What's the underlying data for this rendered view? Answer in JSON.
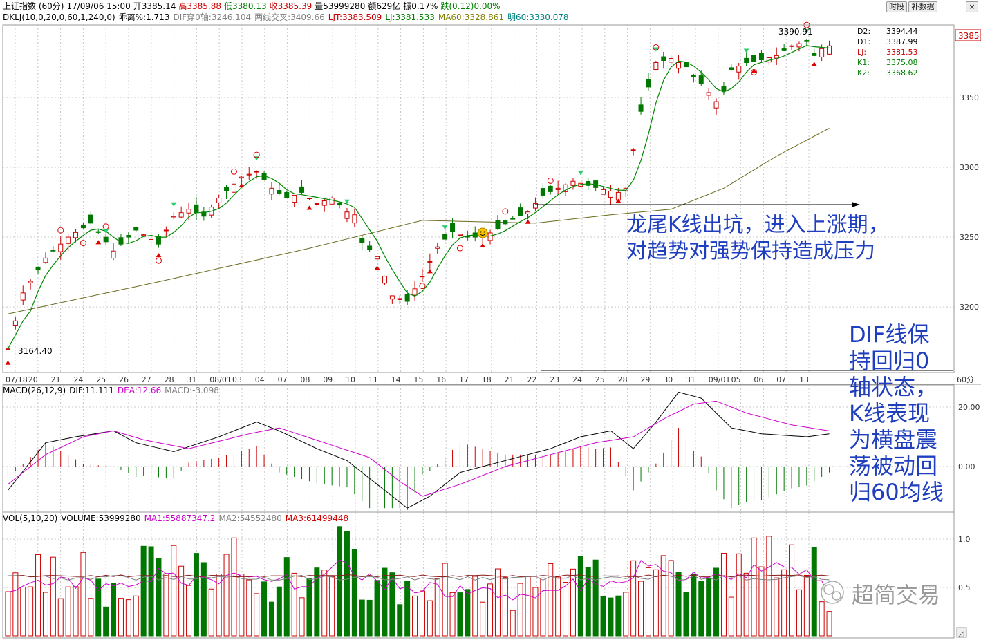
{
  "header": {
    "row1": [
      {
        "text": "上证指数 (60分)",
        "color": "#000000"
      },
      {
        "text": "17/09/06 15:00",
        "color": "#000000"
      },
      {
        "text": "开3385.14",
        "color": "#000000"
      },
      {
        "text": "高3385.88",
        "color": "#cc0000"
      },
      {
        "text": "低3380.13",
        "color": "#008000"
      },
      {
        "text": "收3385.39",
        "color": "#cc0000"
      },
      {
        "text": "量53999280",
        "color": "#000000"
      },
      {
        "text": "额629亿",
        "color": "#000000"
      },
      {
        "text": "振0.17%",
        "color": "#000000"
      },
      {
        "text": "跌(0.12)0.00%",
        "color": "#008000"
      }
    ],
    "row2": [
      {
        "text": "DKLJ(10,0,20,0,60,1,240,0)",
        "color": "#000000"
      },
      {
        "text": "乖离%:1.713",
        "color": "#000000"
      },
      {
        "text": "DIF穿0轴:3246.104",
        "color": "#808080"
      },
      {
        "text": "两线交叉:3409.66",
        "color": "#808080"
      },
      {
        "text": "LJT:3383.509",
        "color": "#cc0000"
      },
      {
        "text": "LJ:3381.533",
        "color": "#008000"
      },
      {
        "text": "MA60:3328.861",
        "color": "#808000"
      },
      {
        "text": "明60:3330.078",
        "color": "#008080"
      }
    ]
  },
  "toolbar": {
    "btn1": "时段",
    "btn2": "补数据",
    "close": "×"
  },
  "icons": [
    "close-icon",
    "up-arrow-icon",
    "down-arrow-icon",
    "smiley-icon",
    "wechat-logo-icon",
    "scroll-icon"
  ],
  "watermark": "超简交易",
  "annotation": {
    "line1": "龙尾K线出坑，进入上涨期，",
    "line2": "对趋势对强势保持造成压力",
    "dif_text": [
      "DIF线保",
      "持回归0",
      "轴状态，",
      "K线表现",
      "为横盘震",
      "荡被动回",
      "归60均线"
    ]
  },
  "price_labels": {
    "low": "3164.40",
    "high": "3390.91",
    "current": "3385"
  },
  "right_legend": [
    {
      "name": "D2:",
      "value": "3394.44",
      "color": "#000000"
    },
    {
      "name": "D1:",
      "value": "3387.99",
      "color": "#000000"
    },
    {
      "name": "LJ:",
      "value": "3381.53",
      "color": "#cc0000"
    },
    {
      "name": "K1:",
      "value": "3375.08",
      "color": "#008000"
    },
    {
      "name": "K2:",
      "value": "3368.62",
      "color": "#008000"
    }
  ],
  "macd_header": [
    {
      "text": "MACD(26,12,9)",
      "color": "#000000"
    },
    {
      "text": "DIF:11.111",
      "color": "#000000"
    },
    {
      "text": "DEA:12.66",
      "color": "#cc00cc"
    },
    {
      "text": "MACD:-3.098",
      "color": "#808080"
    }
  ],
  "vol_header": [
    {
      "text": "VOL(5,10,20)",
      "color": "#000000"
    },
    {
      "text": "VOLUME:53999280",
      "color": "#000000"
    },
    {
      "text": "MA1:55887347.2",
      "color": "#cc00cc"
    },
    {
      "text": "MA2:54552480",
      "color": "#808080"
    },
    {
      "text": "MA3:61499448",
      "color": "#cc0000"
    }
  ],
  "colors": {
    "up": "#cc0000",
    "down": "#007700",
    "ma": "#008800",
    "ma60": "#6b6b1e",
    "dif": "#000000",
    "dea": "#cc00cc",
    "grid": "#c8c8c8",
    "border": "#999999"
  },
  "chart_data": {
    "type": "candlestick",
    "period": "60分",
    "x_dates": [
      "07/18",
      "20",
      "21",
      "24",
      "25",
      "26",
      "27",
      "28",
      "31",
      "08/01",
      "03",
      "04",
      "07",
      "08",
      "09",
      "10",
      "11",
      "14",
      "15",
      "16",
      "17",
      "18",
      "21",
      "22",
      "23",
      "24",
      "25",
      "28",
      "29",
      "30",
      "31",
      "09/01",
      "05",
      "06",
      "07",
      "13"
    ],
    "price_axis": {
      "ticks": [
        3200,
        3250,
        3300,
        3350,
        3385
      ],
      "range": [
        3155,
        3400
      ]
    },
    "price_anchors": [
      [
        0,
        3170
      ],
      [
        2,
        3210
      ],
      [
        5,
        3235
      ],
      [
        8,
        3250
      ],
      [
        11,
        3260
      ],
      [
        14,
        3240
      ],
      [
        17,
        3255
      ],
      [
        20,
        3245
      ],
      [
        22,
        3265
      ],
      [
        24,
        3270
      ],
      [
        26,
        3265
      ],
      [
        28,
        3278
      ],
      [
        31,
        3293
      ],
      [
        33,
        3297
      ],
      [
        35,
        3285
      ],
      [
        37,
        3278
      ],
      [
        39,
        3282
      ],
      [
        41,
        3274
      ],
      [
        43,
        3278
      ],
      [
        45,
        3268
      ],
      [
        46,
        3266
      ],
      [
        47,
        3246
      ],
      [
        49,
        3236
      ],
      [
        51,
        3208
      ],
      [
        53,
        3204
      ],
      [
        55,
        3222
      ],
      [
        57,
        3243
      ],
      [
        59,
        3254
      ],
      [
        61,
        3250
      ],
      [
        63,
        3250
      ],
      [
        65,
        3256
      ],
      [
        67,
        3263
      ],
      [
        69,
        3268
      ],
      [
        71,
        3280
      ],
      [
        73,
        3285
      ],
      [
        75,
        3290
      ],
      [
        77,
        3287
      ],
      [
        79,
        3284
      ],
      [
        81,
        3282
      ],
      [
        82,
        3285
      ],
      [
        84,
        3340
      ],
      [
        86,
        3375
      ],
      [
        88,
        3378
      ],
      [
        90,
        3372
      ],
      [
        91,
        3365
      ],
      [
        92,
        3360
      ],
      [
        94,
        3347
      ],
      [
        95,
        3355
      ],
      [
        96,
        3370
      ],
      [
        98,
        3375
      ],
      [
        100,
        3377
      ],
      [
        102,
        3380
      ],
      [
        104,
        3387
      ],
      [
        106,
        3390
      ],
      [
        107,
        3380
      ],
      [
        108,
        3385
      ],
      [
        109,
        3387
      ]
    ],
    "ma60_anchors": [
      [
        0,
        3195
      ],
      [
        20,
        3218
      ],
      [
        40,
        3242
      ],
      [
        55,
        3262
      ],
      [
        70,
        3260
      ],
      [
        80,
        3266
      ],
      [
        88,
        3270
      ],
      [
        95,
        3285
      ],
      [
        102,
        3308
      ],
      [
        109,
        3328
      ]
    ],
    "macd_axis": {
      "ticks": [
        0,
        20
      ]
    },
    "dif_anchors": [
      [
        0,
        -8
      ],
      [
        5,
        8
      ],
      [
        9,
        10
      ],
      [
        14,
        12
      ],
      [
        17,
        8
      ],
      [
        22,
        5
      ],
      [
        28,
        10
      ],
      [
        33,
        15
      ],
      [
        36,
        12
      ],
      [
        41,
        6
      ],
      [
        45,
        2
      ],
      [
        49,
        -6
      ],
      [
        53,
        -14
      ],
      [
        56,
        -10
      ],
      [
        60,
        -2
      ],
      [
        66,
        2
      ],
      [
        72,
        6
      ],
      [
        76,
        10
      ],
      [
        80,
        12
      ],
      [
        83,
        6
      ],
      [
        86,
        15
      ],
      [
        89,
        25
      ],
      [
        92,
        23
      ],
      [
        94,
        18
      ],
      [
        96,
        13
      ],
      [
        100,
        11
      ],
      [
        106,
        10
      ],
      [
        109,
        11
      ]
    ],
    "dea_anchors": [
      [
        0,
        -6
      ],
      [
        5,
        4
      ],
      [
        10,
        10
      ],
      [
        14,
        12
      ],
      [
        18,
        9
      ],
      [
        24,
        6
      ],
      [
        32,
        11
      ],
      [
        36,
        13
      ],
      [
        42,
        8
      ],
      [
        48,
        3
      ],
      [
        52,
        -5
      ],
      [
        55,
        -10
      ],
      [
        60,
        -6
      ],
      [
        66,
        0
      ],
      [
        72,
        4
      ],
      [
        78,
        8
      ],
      [
        83,
        10
      ],
      [
        87,
        16
      ],
      [
        91,
        21
      ],
      [
        94,
        22
      ],
      [
        98,
        18
      ],
      [
        104,
        14
      ],
      [
        109,
        12
      ]
    ],
    "vol_axis": {
      "ticks": [
        0.5,
        1.0
      ],
      "unit": "亿"
    },
    "vol_anchors": [
      [
        0,
        0.55
      ],
      [
        8,
        0.65
      ],
      [
        14,
        0.5
      ],
      [
        20,
        0.7
      ],
      [
        26,
        0.6
      ],
      [
        33,
        0.75
      ],
      [
        40,
        0.55
      ],
      [
        44,
        0.8
      ],
      [
        50,
        0.6
      ],
      [
        56,
        0.55
      ],
      [
        62,
        0.5
      ],
      [
        68,
        0.45
      ],
      [
        74,
        0.6
      ],
      [
        80,
        0.55
      ],
      [
        84,
        0.8
      ],
      [
        88,
        0.7
      ],
      [
        94,
        0.65
      ],
      [
        100,
        0.8
      ],
      [
        106,
        0.7
      ],
      [
        109,
        0.5
      ]
    ],
    "vol_ma_level": [
      0.55,
      0.6,
      0.62
    ]
  }
}
